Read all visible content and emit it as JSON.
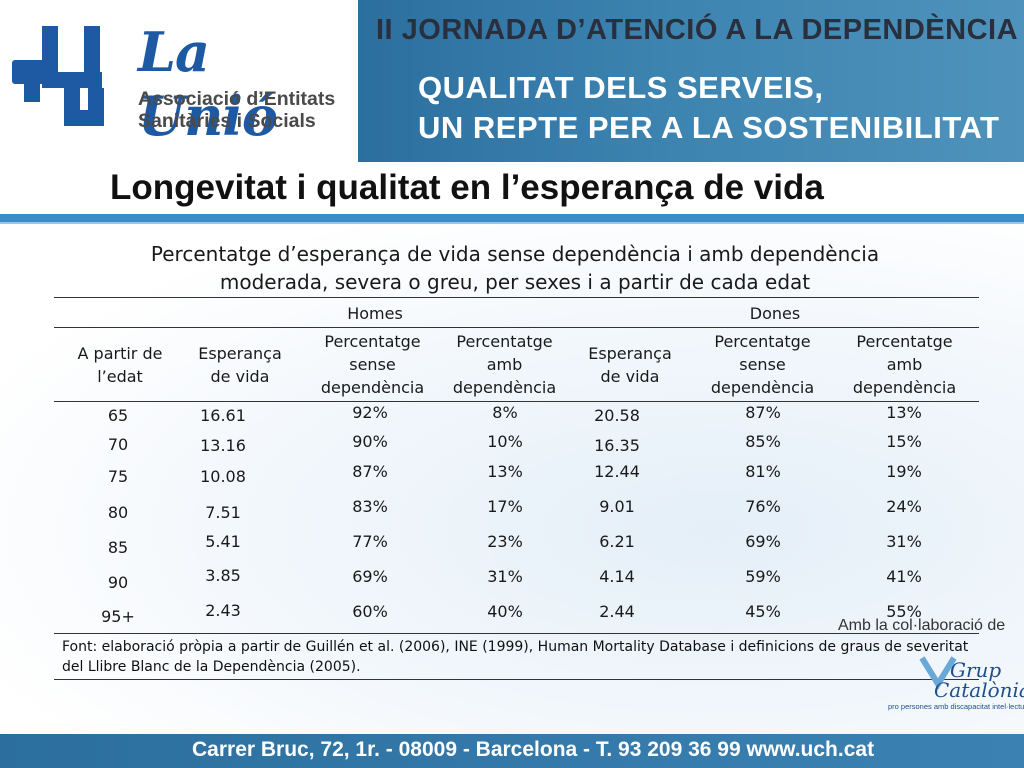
{
  "header": {
    "logo_name": "La Unió",
    "logo_sub_line1": "Associació d’Entitats",
    "logo_sub_line2": "Sanitàries i Socials",
    "banner_title": "II JORNADA D’ATENCIÓ A LA DEPENDÈNCIA",
    "banner_sub_line1": "QUALITAT DELS SERVEIS,",
    "banner_sub_line2": "UN REPTE PER A LA SOSTENIBILITAT",
    "brand_color": "#1e5aa4",
    "banner_color": "#3c83b0"
  },
  "title": "Longevitat i qualitat en l’esperança de vida",
  "subtitle_line1": "Percentatge d’esperança de vida sense dependència i amb dependència",
  "subtitle_line2": "moderada, severa o greu, per sexes i a partir de cada edat",
  "table": {
    "group_men": "Homes",
    "group_women": "Dones",
    "col_age_1": "A partir de",
    "col_age_2": "l’edat",
    "col_le_1": "Esperança",
    "col_le_2": "de vida",
    "col_without_1": "Percentatge",
    "col_without_2": "sense",
    "col_without_3": "dependència",
    "col_with_1": "Percentatge",
    "col_with_2": "amb",
    "col_with_3": "dependència",
    "rows": [
      {
        "age": "65",
        "m_le": "16.61",
        "m_without": "92%",
        "m_with": "8%",
        "w_le": "20.58",
        "w_without": "87%",
        "w_with": "13%"
      },
      {
        "age": "70",
        "m_le": "13.16",
        "m_without": "90%",
        "m_with": "10%",
        "w_le": "16.35",
        "w_without": "85%",
        "w_with": "15%"
      },
      {
        "age": "75",
        "m_le": "10.08",
        "m_without": "87%",
        "m_with": "13%",
        "w_le": "12.44",
        "w_without": "81%",
        "w_with": "19%"
      },
      {
        "age": "80",
        "m_le": "7.51",
        "m_without": "83%",
        "m_with": "17%",
        "w_le": "9.01",
        "w_without": "76%",
        "w_with": "24%"
      },
      {
        "age": "85",
        "m_le": "5.41",
        "m_without": "77%",
        "m_with": "23%",
        "w_le": "6.21",
        "w_without": "69%",
        "w_with": "31%"
      },
      {
        "age": "90",
        "m_le": "3.85",
        "m_without": "69%",
        "m_with": "31%",
        "w_le": "4.14",
        "w_without": "59%",
        "w_with": "41%"
      },
      {
        "age": "95+",
        "m_le": "2.43",
        "m_without": "60%",
        "m_with": "40%",
        "w_le": "2.44",
        "w_without": "45%",
        "w_with": "55%"
      }
    ]
  },
  "footnote": "Font: elaboració pròpia a partir de Guillén et al. (2006), INE (1999), Human Mortality Database i definicions de graus de severitat del Llibre Blanc de la Dependència (2005).",
  "collab_text": "Amb la col·laboració de",
  "partner_name_1": "Grup",
  "partner_name_2": "Catalònia",
  "partner_tag": "pro persones amb discapacitat intel·lectual",
  "footer_text": "Carrer Bruc, 72, 1r. - 08009 - Barcelona - T. 93 209 36 99  www.uch.cat"
}
